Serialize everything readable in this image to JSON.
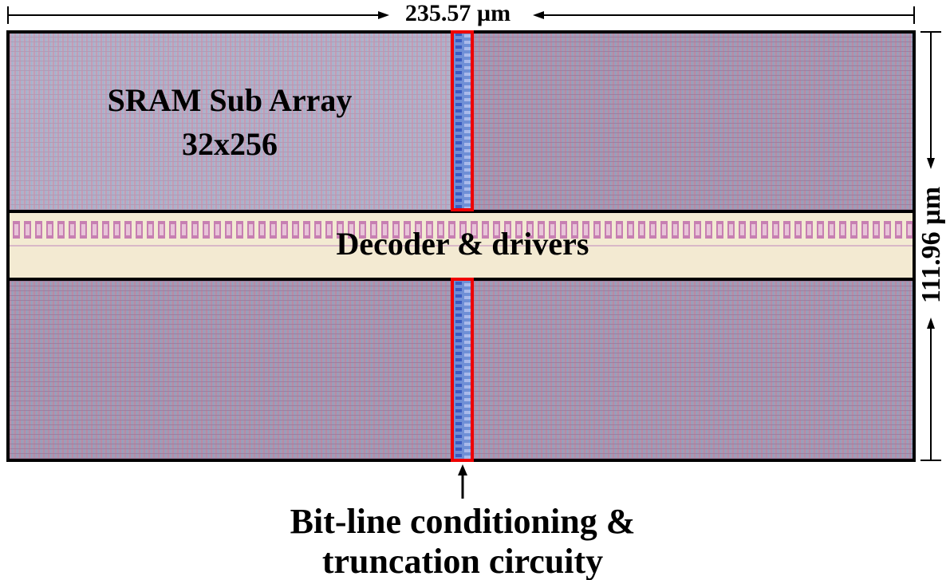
{
  "dimensions": {
    "width": "235.57 µm",
    "height": "111.96 µm"
  },
  "labels": {
    "sub_array": [
      "SRAM Sub Array",
      "32x256"
    ],
    "decoder": "Decoder & drivers",
    "bitline": [
      "Bit-line conditioning &",
      "truncation circuity"
    ]
  }
}
